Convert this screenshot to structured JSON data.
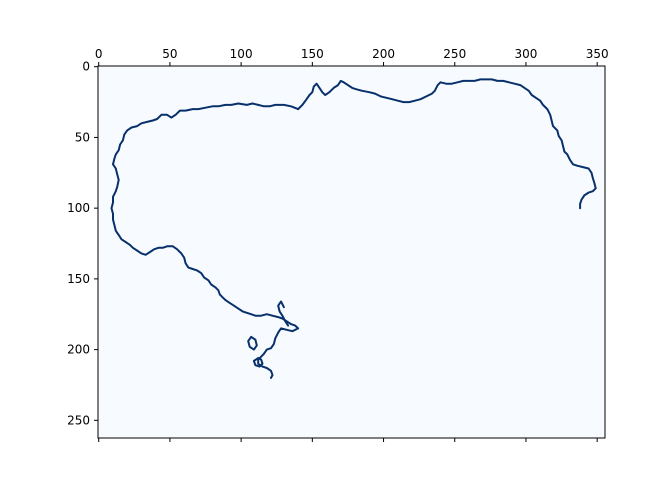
{
  "chart_data": {
    "type": "heatmap",
    "title": "",
    "xlabel": "",
    "ylabel": "",
    "xlim": [
      -0.5,
      355.5
    ],
    "ylim": [
      262.5,
      -0.5
    ],
    "x_ticks": [
      0,
      50,
      100,
      150,
      200,
      250,
      300,
      350
    ],
    "y_ticks": [
      0,
      50,
      100,
      150,
      200,
      250
    ],
    "x_tick_position": "top",
    "colormap": "Blues",
    "colors": {
      "background": "#f7fbff",
      "foreground": "#08306b",
      "axes": "#000000"
    },
    "grid": false,
    "legend": "none",
    "paths": [
      {
        "name": "",
        "points": [
          [
            140,
            30
          ],
          [
            135,
            28
          ],
          [
            130,
            27
          ],
          [
            124,
            27
          ],
          [
            120,
            28
          ],
          [
            116,
            28
          ],
          [
            112,
            27
          ],
          [
            108,
            26
          ],
          [
            104,
            27
          ],
          [
            98,
            26
          ],
          [
            93,
            27
          ],
          [
            89,
            27
          ],
          [
            84,
            28
          ],
          [
            80,
            28
          ],
          [
            75,
            29
          ],
          [
            70,
            30
          ],
          [
            66,
            30
          ],
          [
            61,
            31
          ],
          [
            57,
            31
          ],
          [
            54,
            34
          ],
          [
            51,
            36
          ],
          [
            48,
            34
          ],
          [
            44,
            34
          ],
          [
            41,
            37
          ],
          [
            38,
            38
          ],
          [
            34,
            39
          ],
          [
            30,
            40
          ],
          [
            27,
            42
          ],
          [
            23,
            43
          ],
          [
            20,
            45
          ],
          [
            18,
            48
          ],
          [
            17,
            52
          ],
          [
            15,
            55
          ],
          [
            14,
            59
          ],
          [
            12,
            62
          ],
          [
            11,
            65
          ],
          [
            10,
            69
          ],
          [
            12,
            72
          ],
          [
            13,
            76
          ],
          [
            14,
            80
          ],
          [
            13,
            85
          ],
          [
            12,
            88
          ],
          [
            10,
            92
          ],
          [
            10,
            96
          ],
          [
            9,
            100
          ],
          [
            10,
            104
          ],
          [
            10,
            108
          ],
          [
            11,
            112
          ],
          [
            12,
            116
          ],
          [
            14,
            119
          ],
          [
            16,
            122
          ],
          [
            19,
            124
          ],
          [
            22,
            126
          ],
          [
            24,
            128
          ],
          [
            27,
            130
          ],
          [
            30,
            132
          ],
          [
            33,
            133
          ],
          [
            36,
            131
          ],
          [
            39,
            129
          ],
          [
            42,
            128
          ],
          [
            45,
            128
          ],
          [
            48,
            127
          ],
          [
            52,
            127
          ],
          [
            55,
            129
          ],
          [
            58,
            132
          ],
          [
            60,
            135
          ],
          [
            61,
            139
          ],
          [
            63,
            142
          ],
          [
            66,
            143
          ],
          [
            69,
            144
          ],
          [
            72,
            146
          ],
          [
            74,
            149
          ],
          [
            77,
            151
          ],
          [
            79,
            154
          ],
          [
            82,
            156
          ],
          [
            84,
            158
          ],
          [
            85,
            161
          ],
          [
            87,
            163
          ],
          [
            89,
            165
          ],
          [
            92,
            167
          ],
          [
            95,
            169
          ],
          [
            98,
            171
          ],
          [
            101,
            173
          ],
          [
            104,
            174
          ],
          [
            107,
            175
          ],
          [
            110,
            176
          ],
          [
            114,
            176
          ],
          [
            118,
            175
          ],
          [
            122,
            176
          ],
          [
            126,
            177
          ],
          [
            129,
            178
          ],
          [
            132,
            180
          ],
          [
            135,
            182
          ],
          [
            138,
            183
          ],
          [
            140,
            185
          ],
          [
            136,
            187
          ],
          [
            132,
            186
          ],
          [
            128,
            185
          ],
          [
            126,
            188
          ],
          [
            124,
            192
          ],
          [
            123,
            196
          ],
          [
            121,
            199
          ],
          [
            118,
            200
          ],
          [
            116,
            203
          ],
          [
            114,
            205
          ],
          [
            112,
            207
          ],
          [
            112,
            210
          ],
          [
            115,
            212
          ],
          [
            118,
            213
          ],
          [
            121,
            215
          ],
          [
            122,
            218
          ],
          [
            121,
            220
          ]
        ]
      },
      {
        "name": "",
        "points": [
          [
            130,
            170
          ],
          [
            128,
            166
          ],
          [
            126,
            169
          ],
          [
            127,
            173
          ],
          [
            129,
            176
          ],
          [
            131,
            180
          ],
          [
            133,
            183
          ]
        ]
      },
      {
        "name": "",
        "points": [
          [
            107,
            191
          ],
          [
            105,
            194
          ],
          [
            106,
            198
          ],
          [
            109,
            200
          ],
          [
            111,
            197
          ],
          [
            110,
            193
          ],
          [
            107,
            191
          ]
        ]
      },
      {
        "name": "",
        "points": [
          [
            112,
            206
          ],
          [
            109,
            208
          ],
          [
            110,
            211
          ],
          [
            113,
            212
          ],
          [
            115,
            210
          ],
          [
            114,
            207
          ],
          [
            112,
            206
          ]
        ]
      },
      {
        "name": "",
        "points": [
          [
            140,
            30
          ],
          [
            143,
            27
          ],
          [
            146,
            23
          ],
          [
            148,
            20
          ],
          [
            150,
            18
          ],
          [
            151,
            14
          ],
          [
            153,
            12
          ],
          [
            155,
            15
          ],
          [
            157,
            18
          ],
          [
            159,
            20
          ],
          [
            162,
            18
          ],
          [
            165,
            15
          ],
          [
            168,
            13
          ],
          [
            170,
            10
          ],
          [
            172,
            11
          ],
          [
            175,
            13
          ],
          [
            178,
            15
          ],
          [
            181,
            16
          ],
          [
            185,
            17
          ],
          [
            190,
            18
          ],
          [
            194,
            19
          ],
          [
            198,
            21
          ],
          [
            202,
            22
          ],
          [
            206,
            23
          ],
          [
            210,
            24
          ],
          [
            214,
            25
          ],
          [
            218,
            25
          ],
          [
            222,
            24
          ],
          [
            226,
            23
          ],
          [
            230,
            21
          ],
          [
            234,
            19
          ],
          [
            236,
            17
          ],
          [
            238,
            13
          ],
          [
            240,
            11
          ],
          [
            244,
            12
          ],
          [
            248,
            12
          ],
          [
            252,
            11
          ],
          [
            256,
            10
          ],
          [
            260,
            10
          ],
          [
            264,
            10
          ],
          [
            268,
            9
          ],
          [
            272,
            9
          ],
          [
            276,
            9
          ],
          [
            280,
            10
          ],
          [
            284,
            10
          ],
          [
            288,
            11
          ],
          [
            292,
            12
          ],
          [
            296,
            13
          ],
          [
            299,
            15
          ],
          [
            302,
            17
          ],
          [
            304,
            20
          ],
          [
            307,
            22
          ],
          [
            310,
            24
          ],
          [
            312,
            27
          ],
          [
            315,
            30
          ],
          [
            317,
            34
          ],
          [
            318,
            38
          ],
          [
            319,
            42
          ],
          [
            322,
            45
          ],
          [
            323,
            49
          ],
          [
            325,
            52
          ],
          [
            326,
            56
          ],
          [
            327,
            60
          ],
          [
            329,
            62
          ],
          [
            331,
            66
          ],
          [
            333,
            69
          ],
          [
            336,
            70
          ],
          [
            340,
            71
          ],
          [
            344,
            72
          ],
          [
            346,
            75
          ],
          [
            347,
            79
          ],
          [
            348,
            82
          ],
          [
            349,
            86
          ],
          [
            347,
            88
          ],
          [
            344,
            89
          ],
          [
            341,
            91
          ],
          [
            339,
            94
          ],
          [
            338,
            97
          ],
          [
            338,
            100
          ]
        ]
      }
    ]
  }
}
